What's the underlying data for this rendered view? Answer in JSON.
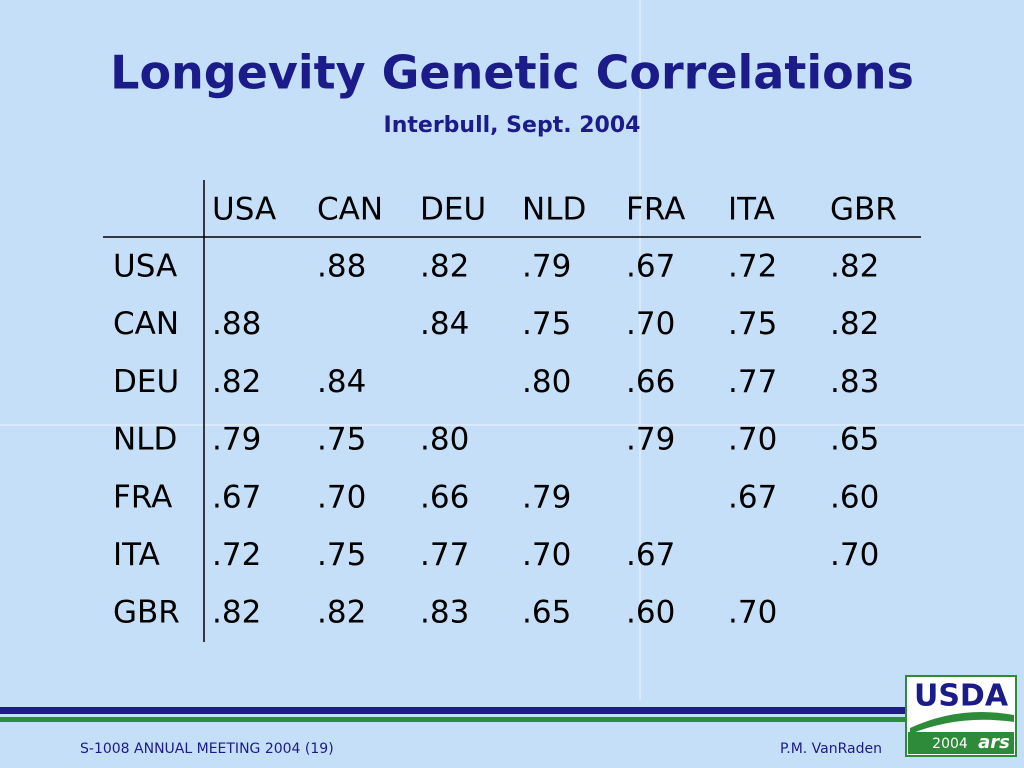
{
  "header": {
    "title": "Longevity Genetic Correlations",
    "subtitle": "Interbull, Sept. 2004"
  },
  "table": {
    "columns": [
      "USA",
      "CAN",
      "DEU",
      "NLD",
      "FRA",
      "ITA",
      "GBR"
    ],
    "rows": [
      {
        "label": "USA",
        "cells": [
          null,
          ".88",
          ".82",
          ".79",
          ".67",
          ".72",
          ".82"
        ]
      },
      {
        "label": "CAN",
        "cells": [
          ".88",
          null,
          ".84",
          ".75",
          ".70",
          ".75",
          ".82"
        ]
      },
      {
        "label": "DEU",
        "cells": [
          ".82",
          ".84",
          null,
          ".80",
          ".66",
          ".77",
          ".83"
        ]
      },
      {
        "label": "NLD",
        "cells": [
          ".79",
          ".75",
          ".80",
          null,
          ".79",
          ".70",
          ".65"
        ]
      },
      {
        "label": "FRA",
        "cells": [
          ".67",
          ".70",
          ".66",
          ".79",
          null,
          ".67",
          ".60"
        ]
      },
      {
        "label": "ITA",
        "cells": [
          ".72",
          ".75",
          ".77",
          ".70",
          ".67",
          null,
          ".70"
        ]
      },
      {
        "label": "GBR",
        "cells": [
          ".82",
          ".82",
          ".83",
          ".65",
          ".60",
          ".70",
          null
        ]
      }
    ]
  },
  "footer": {
    "left": "S-1008 ANNUAL MEETING 2004 (19)",
    "right": "P.M. VanRaden"
  },
  "logo": {
    "name": "USDA",
    "year": "2004",
    "agency": "ars"
  }
}
